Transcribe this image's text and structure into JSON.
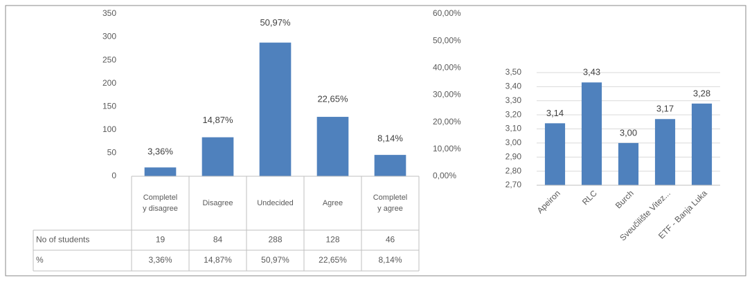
{
  "chart_data": [
    {
      "type": "bar",
      "categories": [
        "Completely disagree",
        "Disagree",
        "Undecided",
        "Agree",
        "Completely agree"
      ],
      "series": [
        {
          "name": "No of students",
          "color": "#4f81bd",
          "values": [
            19,
            84,
            288,
            128,
            46
          ]
        },
        {
          "name": "%",
          "axis": "y2",
          "values": [
            3.36,
            14.87,
            50.97,
            22.65,
            8.14
          ],
          "value_labels": [
            "3,36%",
            "14,87%",
            "50,97%",
            "22,65%",
            "8,14%"
          ]
        }
      ],
      "ylim": [
        0,
        350
      ],
      "yticks": [
        0,
        50,
        100,
        150,
        200,
        250,
        300,
        350
      ],
      "y2lim": [
        0,
        60
      ],
      "y2ticks": [
        {
          "value": 0,
          "label": "0,00%"
        },
        {
          "value": 10,
          "label": "10,00%"
        },
        {
          "value": 20,
          "label": "20,00%"
        },
        {
          "value": 30,
          "label": "30,00%"
        },
        {
          "value": 40,
          "label": "40,00%"
        },
        {
          "value": 50,
          "label": "50,00%"
        },
        {
          "value": 60,
          "label": "60,00%"
        }
      ],
      "grid": false,
      "data_table": true
    },
    {
      "type": "bar",
      "color": "#4f81bd",
      "categories": [
        "Apeiron",
        "RLC",
        "Burch",
        "Sveučilište Vitez...",
        "ETF - Banja Luka"
      ],
      "values": [
        3.14,
        3.43,
        3.0,
        3.17,
        3.28
      ],
      "value_labels": [
        "3,14",
        "3,43",
        "3,00",
        "3,17",
        "3,28"
      ],
      "ylim": [
        2.7,
        3.5
      ],
      "yticks": [
        {
          "value": 2.7,
          "label": "2,70"
        },
        {
          "value": 2.8,
          "label": "2,80"
        },
        {
          "value": 2.9,
          "label": "2,90"
        },
        {
          "value": 3.0,
          "label": "3,00"
        },
        {
          "value": 3.1,
          "label": "3,10"
        },
        {
          "value": 3.2,
          "label": "3,20"
        },
        {
          "value": 3.3,
          "label": "3,30"
        },
        {
          "value": 3.4,
          "label": "3,40"
        },
        {
          "value": 3.5,
          "label": "3,50"
        }
      ],
      "grid": true
    }
  ]
}
